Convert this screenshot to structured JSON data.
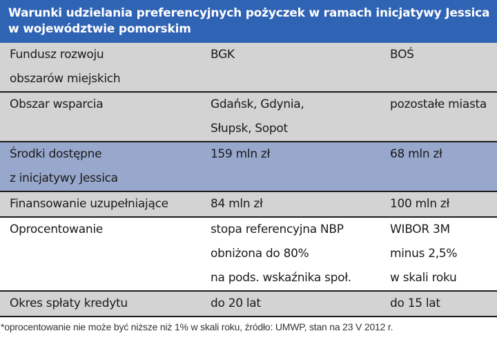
{
  "title": {
    "line1": "Warunki udzielania preferencyjnych pożyczek w ramach inicjatywy Jessica",
    "line2": "w województwie pomorskim"
  },
  "rows": [
    {
      "label": [
        "Fundusz rozwoju",
        "obszarów miejskich"
      ],
      "bgk": [
        "BGK"
      ],
      "bos": [
        "BOŚ"
      ]
    },
    {
      "label": [
        "Obszar wsparcia"
      ],
      "bgk": [
        "Gdańsk, Gdynia,",
        "Słupsk, Sopot"
      ],
      "bos": [
        "pozostałe miasta"
      ]
    },
    {
      "label": [
        "Środki dostępne",
        "z inicjatywy Jessica"
      ],
      "bgk": [
        "159 mln zł"
      ],
      "bos": [
        "68 mln zł"
      ]
    },
    {
      "label": [
        "Finansowanie uzupełniające"
      ],
      "bgk": [
        "84 mln zł"
      ],
      "bos": [
        "100 mln zł"
      ]
    },
    {
      "label": [
        "Oprocentowanie"
      ],
      "bgk": [
        "stopa referencyjna NBP",
        "obniżona do 80%",
        "na pods. wskaźnika społ."
      ],
      "bos": [
        "WIBOR 3M",
        "minus 2,5%",
        "w skali roku"
      ]
    },
    {
      "label": [
        "Okres spłaty kredytu"
      ],
      "bgk": [
        "do 20 lat"
      ],
      "bos": [
        "do 15 lat"
      ]
    }
  ],
  "footnote": "*oprocentowanie nie może być niższe niż 1% w skali roku, źródło: UMWP, stan na 23 V 2012 r.",
  "colors": {
    "header": "#2f63b3",
    "row_gray": "#d3d3d3",
    "row_blue": "#98a7cc"
  }
}
